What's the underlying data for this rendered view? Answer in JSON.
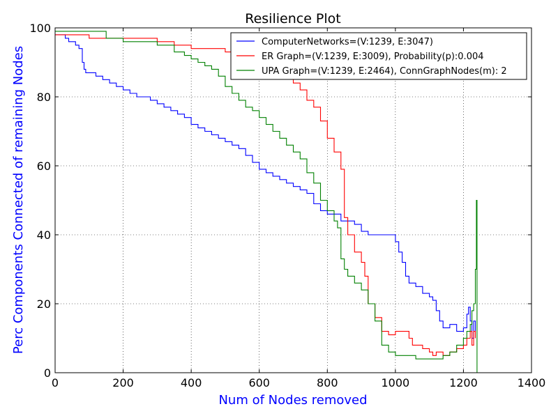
{
  "chart_data": {
    "type": "line",
    "title": "Resilience Plot",
    "xlabel": "Num of Nodes removed",
    "ylabel": "Perc Components Connected of remaining Nodes",
    "axis_label_color": "#0000ff",
    "xlim": [
      0,
      1400
    ],
    "ylim": [
      0,
      100
    ],
    "xticks": [
      "0",
      "200",
      "400",
      "600",
      "800",
      "1000",
      "1200",
      "1400"
    ],
    "yticks": [
      "0",
      "20",
      "40",
      "60",
      "80",
      "100"
    ],
    "grid": true,
    "legend_position": "top-right",
    "series": [
      {
        "name": "ComputerNetworks=(V:1239, E:3047)",
        "color": "#0000ff",
        "x": [
          0,
          10,
          30,
          40,
          60,
          70,
          80,
          85,
          90,
          100,
          120,
          140,
          160,
          180,
          200,
          220,
          240,
          260,
          280,
          300,
          320,
          340,
          360,
          380,
          400,
          420,
          440,
          460,
          480,
          500,
          520,
          540,
          560,
          580,
          600,
          620,
          640,
          660,
          680,
          700,
          720,
          740,
          760,
          780,
          800,
          820,
          840,
          860,
          880,
          900,
          920,
          940,
          960,
          980,
          1000,
          1010,
          1020,
          1030,
          1040,
          1060,
          1080,
          1100,
          1110,
          1120,
          1130,
          1140,
          1160,
          1180,
          1200,
          1210,
          1215,
          1220,
          1225,
          1230,
          1235
        ],
        "values": [
          98,
          98,
          97,
          96,
          95,
          94,
          90,
          88,
          87,
          87,
          86,
          85,
          84,
          83,
          82,
          81,
          80,
          80,
          79,
          78,
          77,
          76,
          75,
          74,
          72,
          71,
          70,
          69,
          68,
          67,
          66,
          65,
          63,
          61,
          59,
          58,
          57,
          56,
          55,
          54,
          53,
          52,
          49,
          47,
          46,
          46,
          44,
          44,
          43,
          41,
          40,
          40,
          40,
          40,
          38,
          35,
          32,
          28,
          26,
          25,
          23,
          22,
          21,
          18,
          15,
          13,
          14,
          12,
          13,
          17,
          19,
          15,
          10,
          15,
          12
        ]
      },
      {
        "name": "ER Graph=(V:1239, E:3009), Probability(p):0.004",
        "color": "#ff0000",
        "x": [
          0,
          50,
          100,
          150,
          200,
          250,
          300,
          350,
          400,
          450,
          500,
          550,
          580,
          600,
          620,
          640,
          660,
          680,
          700,
          720,
          740,
          760,
          780,
          800,
          820,
          840,
          850,
          860,
          880,
          900,
          910,
          920,
          940,
          960,
          980,
          1000,
          1020,
          1040,
          1050,
          1060,
          1080,
          1100,
          1110,
          1120,
          1140,
          1160,
          1180,
          1200,
          1210,
          1220,
          1225,
          1230,
          1235
        ],
        "values": [
          98,
          98,
          97,
          97,
          97,
          97,
          96,
          95,
          94,
          94,
          93,
          91,
          89,
          90,
          88,
          87,
          87,
          86,
          84,
          82,
          79,
          77,
          73,
          68,
          64,
          59,
          45,
          40,
          35,
          32,
          28,
          20,
          16,
          12,
          11,
          12,
          12,
          10,
          8,
          8,
          7,
          6,
          5,
          6,
          5,
          6,
          7,
          8,
          10,
          12,
          8,
          12,
          10
        ]
      },
      {
        "name": "UPA Graph=(V:1239, E:2464), ConnGraphNodes(m): 2",
        "color": "#008000",
        "x": [
          0,
          50,
          100,
          150,
          200,
          250,
          300,
          350,
          380,
          400,
          420,
          440,
          460,
          480,
          500,
          520,
          540,
          560,
          580,
          600,
          620,
          640,
          660,
          680,
          700,
          720,
          740,
          760,
          780,
          800,
          820,
          830,
          840,
          850,
          860,
          880,
          900,
          920,
          940,
          960,
          980,
          1000,
          1020,
          1040,
          1060,
          1080,
          1100,
          1120,
          1140,
          1160,
          1180,
          1200,
          1210,
          1220,
          1225,
          1230,
          1235,
          1238,
          1240
        ],
        "values": [
          99,
          99,
          99,
          97,
          96,
          96,
          95,
          93,
          92,
          91,
          90,
          89,
          88,
          86,
          83,
          81,
          79,
          77,
          76,
          74,
          72,
          70,
          68,
          66,
          64,
          62,
          58,
          55,
          50,
          47,
          44,
          42,
          33,
          30,
          28,
          26,
          24,
          20,
          15,
          8,
          6,
          5,
          5,
          5,
          4,
          4,
          4,
          4,
          5,
          6,
          8,
          10,
          12,
          14,
          18,
          20,
          30,
          50,
          0
        ]
      }
    ]
  }
}
